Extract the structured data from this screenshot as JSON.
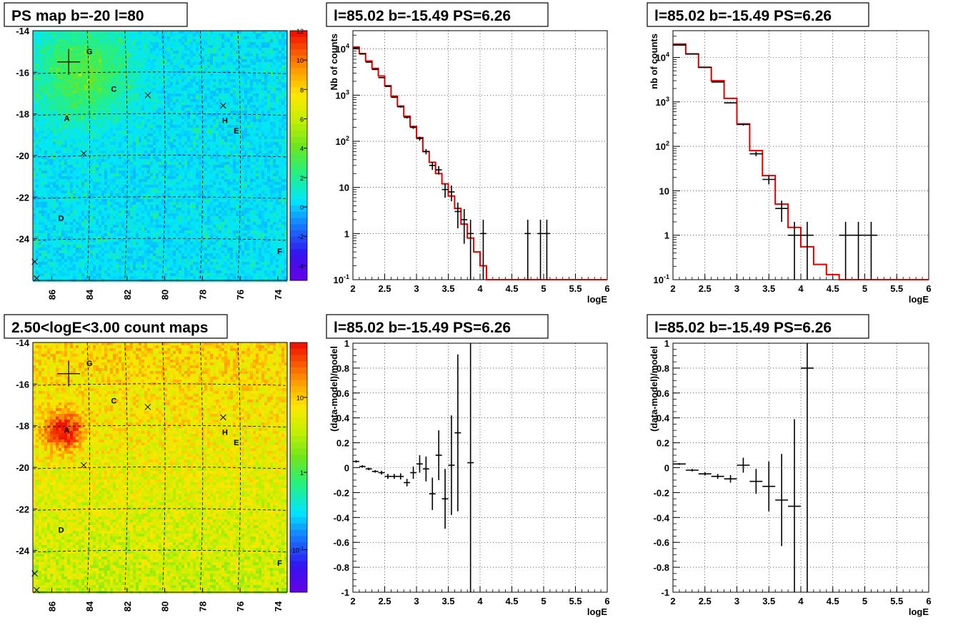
{
  "chart_data": [
    {
      "type": "heatmap",
      "title": "PS map b=-20 l=80",
      "x_ticks": [
        "86",
        "84",
        "82",
        "80",
        "78",
        "76",
        "74"
      ],
      "y_ticks": [
        "-14",
        "-16",
        "-18",
        "-20",
        "-22",
        "-24"
      ],
      "xlim": [
        87,
        73.5
      ],
      "ylim": [
        -26,
        -14
      ],
      "colorbar_ticks": [
        "12",
        "10",
        "8",
        "6",
        "4",
        "2",
        "0",
        "-2",
        "-4"
      ],
      "colorbar_range": [
        -5,
        12
      ],
      "sources": [
        {
          "label": "G",
          "x": 84.0,
          "y": -15.0
        },
        {
          "label": "C",
          "x": 82.7,
          "y": -16.8
        },
        {
          "label": "A",
          "x": 85.2,
          "y": -18.2
        },
        {
          "label": "H",
          "x": 76.8,
          "y": -18.3
        },
        {
          "label": "E",
          "x": 76.2,
          "y": -18.8
        },
        {
          "label": "D",
          "x": 85.5,
          "y": -23.0
        },
        {
          "label": "F",
          "x": 73.9,
          "y": -24.6
        }
      ],
      "crosses": [
        {
          "x": 80.9,
          "y": -17.1
        },
        {
          "x": 76.9,
          "y": -17.6
        },
        {
          "x": 84.3,
          "y": -19.9
        },
        {
          "x": 86.9,
          "y": -25.1
        },
        {
          "x": 86.8,
          "y": -25.9
        }
      ],
      "big_cross": {
        "x": 85.1,
        "y": -15.5
      }
    },
    {
      "type": "heatmap",
      "title": "2.50<logE<3.00 count maps",
      "x_ticks": [
        "86",
        "84",
        "82",
        "80",
        "78",
        "76",
        "74"
      ],
      "y_ticks": [
        "-14",
        "-16",
        "-18",
        "-20",
        "-22",
        "-24"
      ],
      "xlim": [
        87,
        73.5
      ],
      "ylim": [
        -26,
        -14
      ],
      "colorbar_ticks": [
        "10",
        "1",
        "10-1"
      ],
      "colorbar_scale": "log",
      "sources": [
        {
          "label": "G",
          "x": 84.0,
          "y": -15.0
        },
        {
          "label": "C",
          "x": 82.7,
          "y": -16.8
        },
        {
          "label": "A",
          "x": 85.2,
          "y": -18.2
        },
        {
          "label": "H",
          "x": 76.8,
          "y": -18.3
        },
        {
          "label": "E",
          "x": 76.2,
          "y": -18.8
        },
        {
          "label": "D",
          "x": 85.5,
          "y": -23.0
        },
        {
          "label": "F",
          "x": 73.9,
          "y": -24.6
        }
      ],
      "crosses": [
        {
          "x": 80.9,
          "y": -17.1
        },
        {
          "x": 76.9,
          "y": -17.6
        },
        {
          "x": 84.3,
          "y": -19.9
        },
        {
          "x": 86.9,
          "y": -25.1
        },
        {
          "x": 86.8,
          "y": -25.9
        }
      ],
      "big_cross": {
        "x": 85.1,
        "y": -15.5
      }
    },
    {
      "type": "line",
      "title": "l=85.02 b=-15.49 PS=6.26",
      "xlabel": "logE",
      "ylabel": "Nb of counts",
      "xlim": [
        2,
        6
      ],
      "ylim": [
        0.1,
        25000
      ],
      "yscale": "log",
      "x_ticks": [
        "2",
        "2.5",
        "3",
        "3.5",
        "4",
        "4.5",
        "5",
        "5.5",
        "6"
      ],
      "y_ticks": [
        "10-1",
        "1",
        "10",
        "102",
        "103",
        "104"
      ],
      "model_step": {
        "edges": [
          2.0,
          2.1,
          2.2,
          2.3,
          2.4,
          2.5,
          2.6,
          2.7,
          2.8,
          2.9,
          3.0,
          3.1,
          3.2,
          3.3,
          3.4,
          3.5,
          3.6,
          3.7,
          3.8,
          3.9,
          4.0,
          4.1,
          4.2,
          6.0
        ],
        "values": [
          11000,
          8000,
          5500,
          3800,
          2600,
          1600,
          950,
          580,
          350,
          210,
          120,
          60,
          35,
          20,
          12,
          6.5,
          3.5,
          1.6,
          0.8,
          0.4,
          0.2,
          0.1,
          0.1
        ]
      },
      "data_points": [
        {
          "x": 2.05,
          "y": 10500,
          "xerr": 0.05,
          "yerr": [
            100,
            100
          ]
        },
        {
          "x": 2.15,
          "y": 7800,
          "xerr": 0.05,
          "yerr": [
            90,
            90
          ]
        },
        {
          "x": 2.25,
          "y": 5200,
          "xerr": 0.05,
          "yerr": [
            70,
            70
          ]
        },
        {
          "x": 2.35,
          "y": 3600,
          "xerr": 0.05,
          "yerr": [
            60,
            60
          ]
        },
        {
          "x": 2.45,
          "y": 2400,
          "xerr": 0.05,
          "yerr": [
            50,
            50
          ]
        },
        {
          "x": 2.55,
          "y": 1550,
          "xerr": 0.05,
          "yerr": [
            40,
            40
          ]
        },
        {
          "x": 2.65,
          "y": 900,
          "xerr": 0.05,
          "yerr": [
            30,
            30
          ]
        },
        {
          "x": 2.75,
          "y": 560,
          "xerr": 0.05,
          "yerr": [
            24,
            24
          ]
        },
        {
          "x": 2.85,
          "y": 330,
          "xerr": 0.05,
          "yerr": [
            18,
            18
          ]
        },
        {
          "x": 2.95,
          "y": 200,
          "xerr": 0.05,
          "yerr": [
            14,
            14
          ]
        },
        {
          "x": 3.05,
          "y": 115,
          "xerr": 0.05,
          "yerr": [
            11,
            11
          ]
        },
        {
          "x": 3.15,
          "y": 60,
          "xerr": 0.05,
          "yerr": [
            8,
            8
          ]
        },
        {
          "x": 3.25,
          "y": 30,
          "xerr": 0.05,
          "yerr": [
            6,
            6
          ]
        },
        {
          "x": 3.35,
          "y": 24,
          "xerr": 0.05,
          "yerr": [
            5,
            5
          ]
        },
        {
          "x": 3.45,
          "y": 9,
          "xerr": 0.05,
          "yerr": [
            3,
            3
          ]
        },
        {
          "x": 3.55,
          "y": 8,
          "xerr": 0.05,
          "yerr": [
            3,
            3
          ]
        },
        {
          "x": 3.65,
          "y": 3,
          "xerr": 0.05,
          "yerr": [
            1.7,
            1.7
          ]
        },
        {
          "x": 3.75,
          "y": 2,
          "xerr": 0.05,
          "yerr": [
            1.4,
            1.4
          ]
        },
        {
          "x": 3.85,
          "y": 1,
          "xerr": 0.05,
          "yerr": [
            0.9,
            1.0
          ]
        },
        {
          "x": 4.05,
          "y": 1,
          "xerr": 0.05,
          "yerr": [
            0.9,
            1.0
          ]
        },
        {
          "x": 4.75,
          "y": 1,
          "xerr": 0.05,
          "yerr": [
            0.9,
            1.0
          ]
        },
        {
          "x": 4.95,
          "y": 1,
          "xerr": 0.05,
          "yerr": [
            0.9,
            1.0
          ]
        },
        {
          "x": 5.05,
          "y": 1,
          "xerr": 0.05,
          "yerr": [
            0.9,
            1.0
          ]
        }
      ]
    },
    {
      "type": "line",
      "title": "l=85.02 b=-15.49 PS=6.26",
      "xlabel": "logE",
      "ylabel": "nb of counts",
      "xlim": [
        2,
        6
      ],
      "ylim": [
        0.1,
        40000
      ],
      "yscale": "log",
      "x_ticks": [
        "2",
        "2.5",
        "3",
        "3.5",
        "4",
        "4.5",
        "5",
        "5.5",
        "6"
      ],
      "y_ticks": [
        "10-1",
        "1",
        "10",
        "102",
        "103",
        "104"
      ],
      "model_step": {
        "edges": [
          2.0,
          2.2,
          2.4,
          2.6,
          2.8,
          3.0,
          3.2,
          3.4,
          3.6,
          3.8,
          4.0,
          4.2,
          4.4,
          4.6,
          6.0
        ],
        "values": [
          20000,
          12000,
          6000,
          3000,
          1200,
          320,
          80,
          22,
          5,
          1.5,
          0.55,
          0.22,
          0.13,
          0.1
        ]
      },
      "data_points": [
        {
          "x": 2.1,
          "y": 19000,
          "xerr": 0.1,
          "yerr": [
            140,
            140
          ]
        },
        {
          "x": 2.3,
          "y": 12000,
          "xerr": 0.1,
          "yerr": [
            110,
            110
          ]
        },
        {
          "x": 2.5,
          "y": 6000,
          "xerr": 0.1,
          "yerr": [
            80,
            80
          ]
        },
        {
          "x": 2.7,
          "y": 2800,
          "xerr": 0.1,
          "yerr": [
            53,
            53
          ]
        },
        {
          "x": 2.9,
          "y": 950,
          "xerr": 0.1,
          "yerr": [
            30,
            30
          ]
        },
        {
          "x": 3.1,
          "y": 310,
          "xerr": 0.1,
          "yerr": [
            18,
            18
          ]
        },
        {
          "x": 3.3,
          "y": 68,
          "xerr": 0.1,
          "yerr": [
            8,
            8
          ]
        },
        {
          "x": 3.5,
          "y": 18,
          "xerr": 0.1,
          "yerr": [
            4,
            4
          ]
        },
        {
          "x": 3.7,
          "y": 4,
          "xerr": 0.1,
          "yerr": [
            2,
            2
          ]
        },
        {
          "x": 3.9,
          "y": 1,
          "xerr": 0.1,
          "yerr": [
            0.9,
            1.0
          ]
        },
        {
          "x": 4.1,
          "y": 1,
          "xerr": 0.1,
          "yerr": [
            0.9,
            1.0
          ]
        },
        {
          "x": 4.7,
          "y": 1,
          "xerr": 0.1,
          "yerr": [
            0.9,
            1.0
          ]
        },
        {
          "x": 4.9,
          "y": 1,
          "xerr": 0.1,
          "yerr": [
            0.9,
            1.0
          ]
        },
        {
          "x": 5.1,
          "y": 1,
          "xerr": 0.1,
          "yerr": [
            0.9,
            1.0
          ]
        }
      ]
    },
    {
      "type": "scatter",
      "title": "l=85.02 b=-15.49 PS=6.26",
      "xlabel": "logE",
      "ylabel": "(data-model)/model",
      "xlim": [
        2,
        6
      ],
      "ylim": [
        -1,
        1
      ],
      "x_ticks": [
        "2",
        "2.5",
        "3",
        "3.5",
        "4",
        "4.5",
        "5",
        "5.5",
        "6"
      ],
      "y_ticks": [
        "1",
        "0.8",
        "0.6",
        "0.4",
        "0.2",
        "0",
        "-0.2",
        "-0.4",
        "-0.6",
        "-0.8",
        "-1"
      ],
      "points": [
        {
          "x": 2.05,
          "y": 0.05,
          "xerr": 0.05,
          "yerr": 0.01
        },
        {
          "x": 2.15,
          "y": 0.01,
          "xerr": 0.05,
          "yerr": 0.01
        },
        {
          "x": 2.25,
          "y": -0.01,
          "xerr": 0.05,
          "yerr": 0.01
        },
        {
          "x": 2.35,
          "y": -0.03,
          "xerr": 0.05,
          "yerr": 0.01
        },
        {
          "x": 2.45,
          "y": -0.04,
          "xerr": 0.05,
          "yerr": 0.015
        },
        {
          "x": 2.55,
          "y": -0.07,
          "xerr": 0.05,
          "yerr": 0.02
        },
        {
          "x": 2.65,
          "y": -0.07,
          "xerr": 0.05,
          "yerr": 0.02
        },
        {
          "x": 2.75,
          "y": -0.07,
          "xerr": 0.05,
          "yerr": 0.025
        },
        {
          "x": 2.85,
          "y": -0.12,
          "xerr": 0.05,
          "yerr": 0.03
        },
        {
          "x": 2.95,
          "y": -0.04,
          "xerr": 0.05,
          "yerr": 0.05
        },
        {
          "x": 3.05,
          "y": 0.03,
          "xerr": 0.05,
          "yerr": 0.07
        },
        {
          "x": 3.15,
          "y": -0.01,
          "xerr": 0.05,
          "yerr": 0.1
        },
        {
          "x": 3.25,
          "y": -0.21,
          "xerr": 0.05,
          "yerr": 0.13
        },
        {
          "x": 3.35,
          "y": 0.1,
          "xerr": 0.05,
          "yerr": 0.2
        },
        {
          "x": 3.45,
          "y": -0.25,
          "xerr": 0.05,
          "yerr": 0.24
        },
        {
          "x": 3.55,
          "y": 0.02,
          "xerr": 0.05,
          "yerr": 0.4
        },
        {
          "x": 3.65,
          "y": 0.28,
          "xerr": 0.05,
          "yerr": 0.63
        },
        {
          "x": 3.85,
          "y": 0.04,
          "xerr": 0.05,
          "yerr": 1.2
        }
      ]
    },
    {
      "type": "scatter",
      "title": "l=85.02 b=-15.49 PS=6.26",
      "xlabel": "logE",
      "ylabel": "(data-model)/model",
      "xlim": [
        2,
        6
      ],
      "ylim": [
        -1,
        1
      ],
      "x_ticks": [
        "2",
        "2.5",
        "3",
        "3.5",
        "4",
        "4.5",
        "5",
        "5.5",
        "6"
      ],
      "y_ticks": [
        "1",
        "0.8",
        "0.6",
        "0.4",
        "0.2",
        "0",
        "-0.2",
        "-0.4",
        "-0.6",
        "-0.8",
        "-1"
      ],
      "points": [
        {
          "x": 2.1,
          "y": 0.03,
          "xerr": 0.1,
          "yerr": 0.007
        },
        {
          "x": 2.3,
          "y": -0.02,
          "xerr": 0.1,
          "yerr": 0.01
        },
        {
          "x": 2.5,
          "y": -0.05,
          "xerr": 0.1,
          "yerr": 0.013
        },
        {
          "x": 2.7,
          "y": -0.07,
          "xerr": 0.1,
          "yerr": 0.02
        },
        {
          "x": 2.9,
          "y": -0.09,
          "xerr": 0.1,
          "yerr": 0.03
        },
        {
          "x": 3.1,
          "y": 0.02,
          "xerr": 0.1,
          "yerr": 0.06
        },
        {
          "x": 3.3,
          "y": -0.11,
          "xerr": 0.1,
          "yerr": 0.1
        },
        {
          "x": 3.5,
          "y": -0.15,
          "xerr": 0.1,
          "yerr": 0.2
        },
        {
          "x": 3.7,
          "y": -0.26,
          "xerr": 0.1,
          "yerr": 0.37
        },
        {
          "x": 3.9,
          "y": -0.31,
          "xerr": 0.1,
          "yerr": 0.7
        },
        {
          "x": 4.1,
          "y": 0.8,
          "xerr": 0.1,
          "yerr": 1.8
        }
      ]
    }
  ]
}
